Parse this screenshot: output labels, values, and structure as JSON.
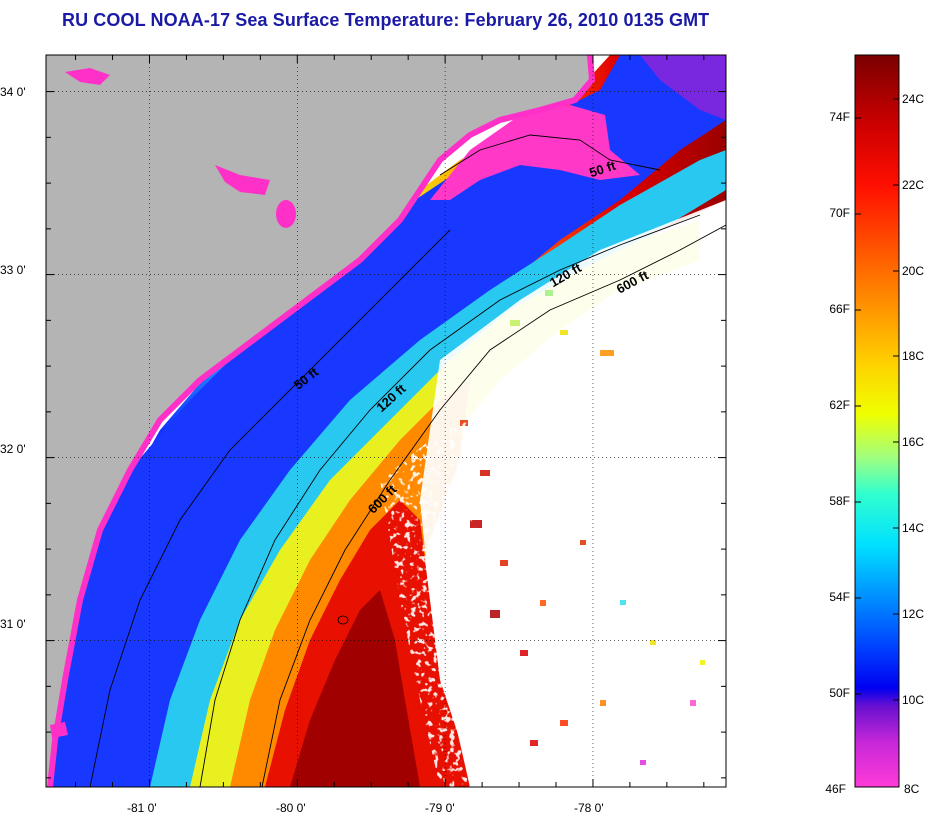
{
  "title": "RU COOL  NOAA-17  Sea Surface Temperature:  February 26, 2010 0135 GMT",
  "map": {
    "lat_ticks": [
      "34 0'",
      "33 0'",
      "32 0'",
      "31 0'"
    ],
    "lon_ticks": [
      "-81 0'",
      "-80 0'",
      "-79 0'",
      "-78 0'"
    ],
    "lat_values": [
      34,
      33,
      32,
      31
    ],
    "lon_values": [
      -81,
      -80,
      -79,
      -78
    ],
    "lon_range": [
      -81.7,
      -77.1
    ],
    "lat_range": [
      30.2,
      34.2
    ],
    "contours": [
      {
        "label": "50 ft",
        "depth_ft": 50
      },
      {
        "label": "50 ft",
        "depth_ft": 50
      },
      {
        "label": "120 ft",
        "depth_ft": 120
      },
      {
        "label": "120 ft",
        "depth_ft": 120
      },
      {
        "label": "600 ft",
        "depth_ft": 600
      },
      {
        "label": "600 ft",
        "depth_ft": 600
      }
    ],
    "colors": {
      "land": "#b4b4b4",
      "cloud": "#ffffff"
    }
  },
  "colorbar": {
    "fahrenheit_ticks": [
      "74F",
      "70F",
      "66F",
      "62F",
      "58F",
      "54F",
      "50F",
      "46F"
    ],
    "celsius_ticks": [
      "24C",
      "22C",
      "20C",
      "18C",
      "16C",
      "14C",
      "12C",
      "10C",
      "8C"
    ],
    "range_c": [
      8,
      25
    ]
  }
}
